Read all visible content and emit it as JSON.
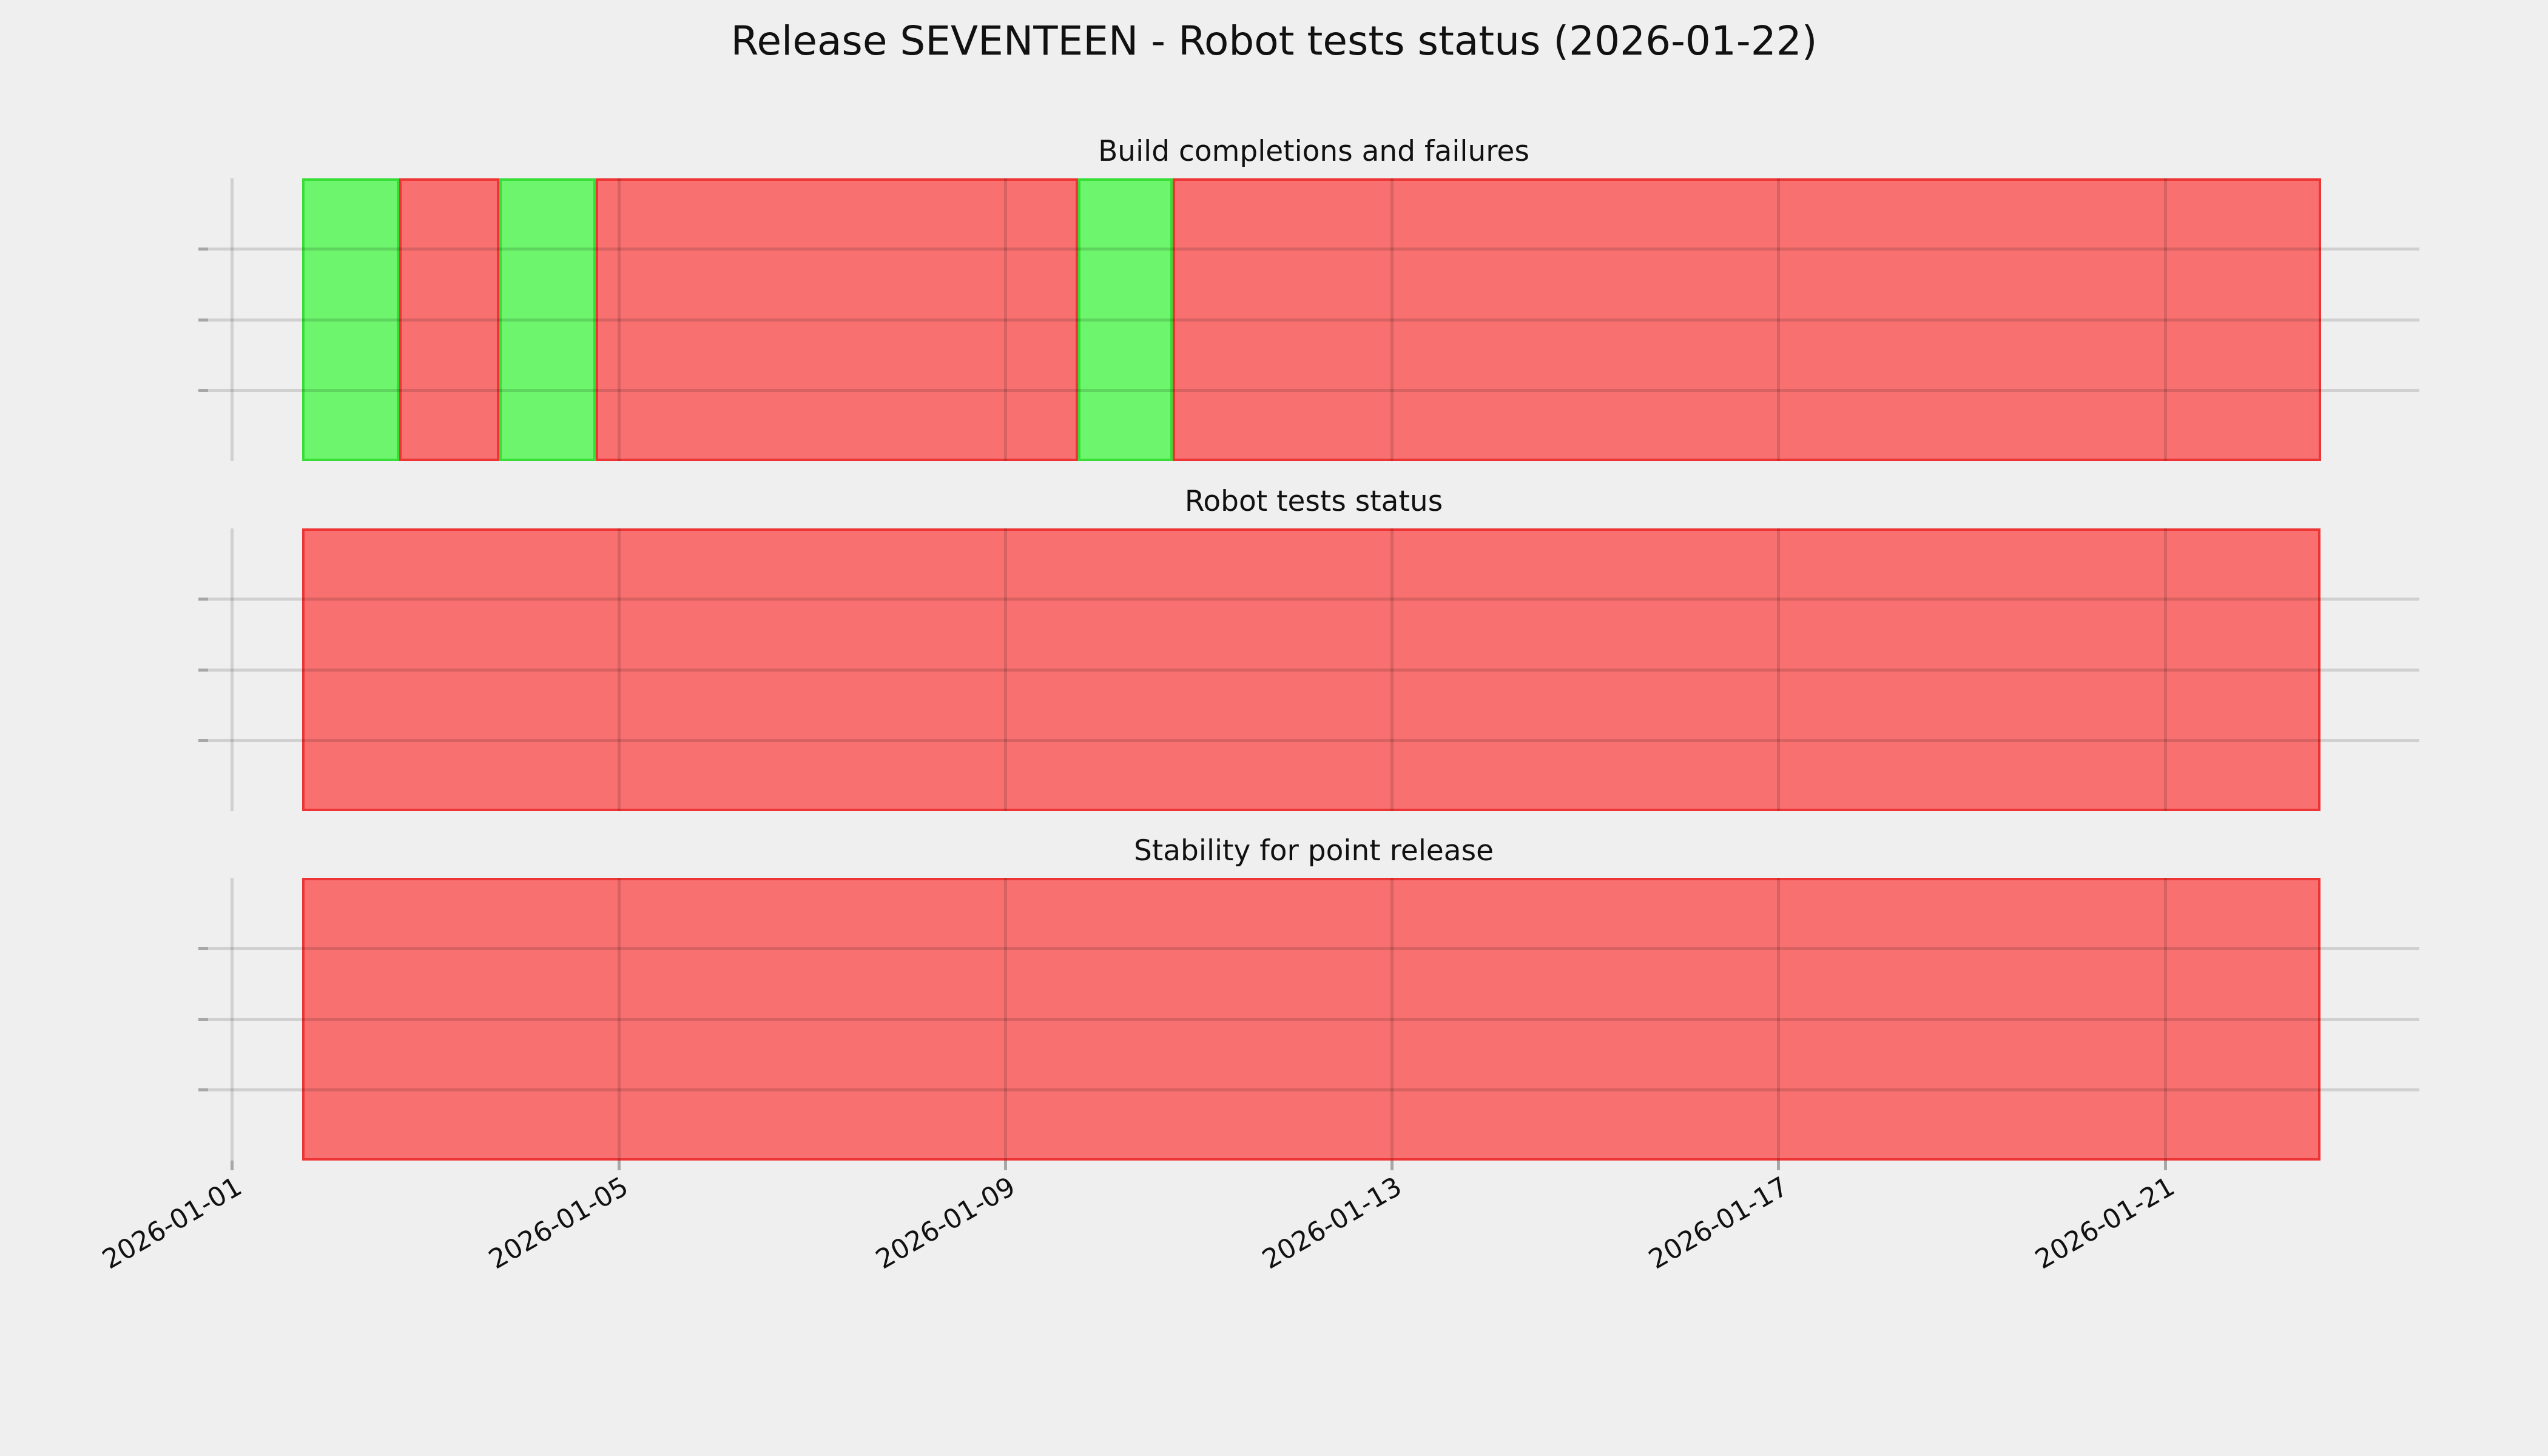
{
  "figure": {
    "title": "Release SEVENTEEN - Robot tests status (2026-01-22)"
  },
  "colors": {
    "background": "#efefef",
    "pass_fill": "#6df66d",
    "pass_edge": "#38dd38",
    "fail_fill": "#f87070",
    "fail_edge": "#ee3535",
    "grid": "rgba(0,0,0,0.13)",
    "tick_mark": "rgba(0,0,0,0.30)",
    "text": "#111111"
  },
  "x_axis": {
    "ticks": [
      {
        "label": "2026-01-01",
        "day": 0
      },
      {
        "label": "2026-01-05",
        "day": 4
      },
      {
        "label": "2026-01-09",
        "day": 8
      },
      {
        "label": "2026-01-13",
        "day": 12
      },
      {
        "label": "2026-01-17",
        "day": 16
      },
      {
        "label": "2026-01-21",
        "day": 20
      }
    ],
    "range_days": [
      -0.25,
      22.63
    ],
    "tick_label_rotation_deg": 30
  },
  "y_axis": {
    "labels_visible": false,
    "grid_rows": 4
  },
  "chart_data": [
    {
      "type": "timeline",
      "title": "Build completions and failures",
      "status_legend": {
        "pass": "green",
        "fail": "red"
      },
      "x_unit": "days after 2026-01-01 00:00",
      "segments": [
        {
          "status": "pass",
          "start_day": 0.72,
          "end_day": 1.73
        },
        {
          "status": "fail",
          "start_day": 1.73,
          "end_day": 2.76
        },
        {
          "status": "pass",
          "start_day": 2.76,
          "end_day": 3.76
        },
        {
          "status": "fail",
          "start_day": 3.76,
          "end_day": 8.75
        },
        {
          "status": "pass",
          "start_day": 8.75,
          "end_day": 9.73
        },
        {
          "status": "fail",
          "start_day": 9.73,
          "end_day": 21.61
        }
      ]
    },
    {
      "type": "timeline",
      "title": "Robot tests status",
      "status_legend": {
        "pass": "green",
        "fail": "red"
      },
      "x_unit": "days after 2026-01-01 00:00",
      "segments": [
        {
          "status": "fail",
          "start_day": 0.72,
          "end_day": 21.61
        }
      ]
    },
    {
      "type": "timeline",
      "title": "Stability for point release",
      "status_legend": {
        "pass": "green",
        "fail": "red"
      },
      "x_unit": "days after 2026-01-01 00:00",
      "segments": [
        {
          "status": "fail",
          "start_day": 0.72,
          "end_day": 21.61
        }
      ]
    }
  ]
}
